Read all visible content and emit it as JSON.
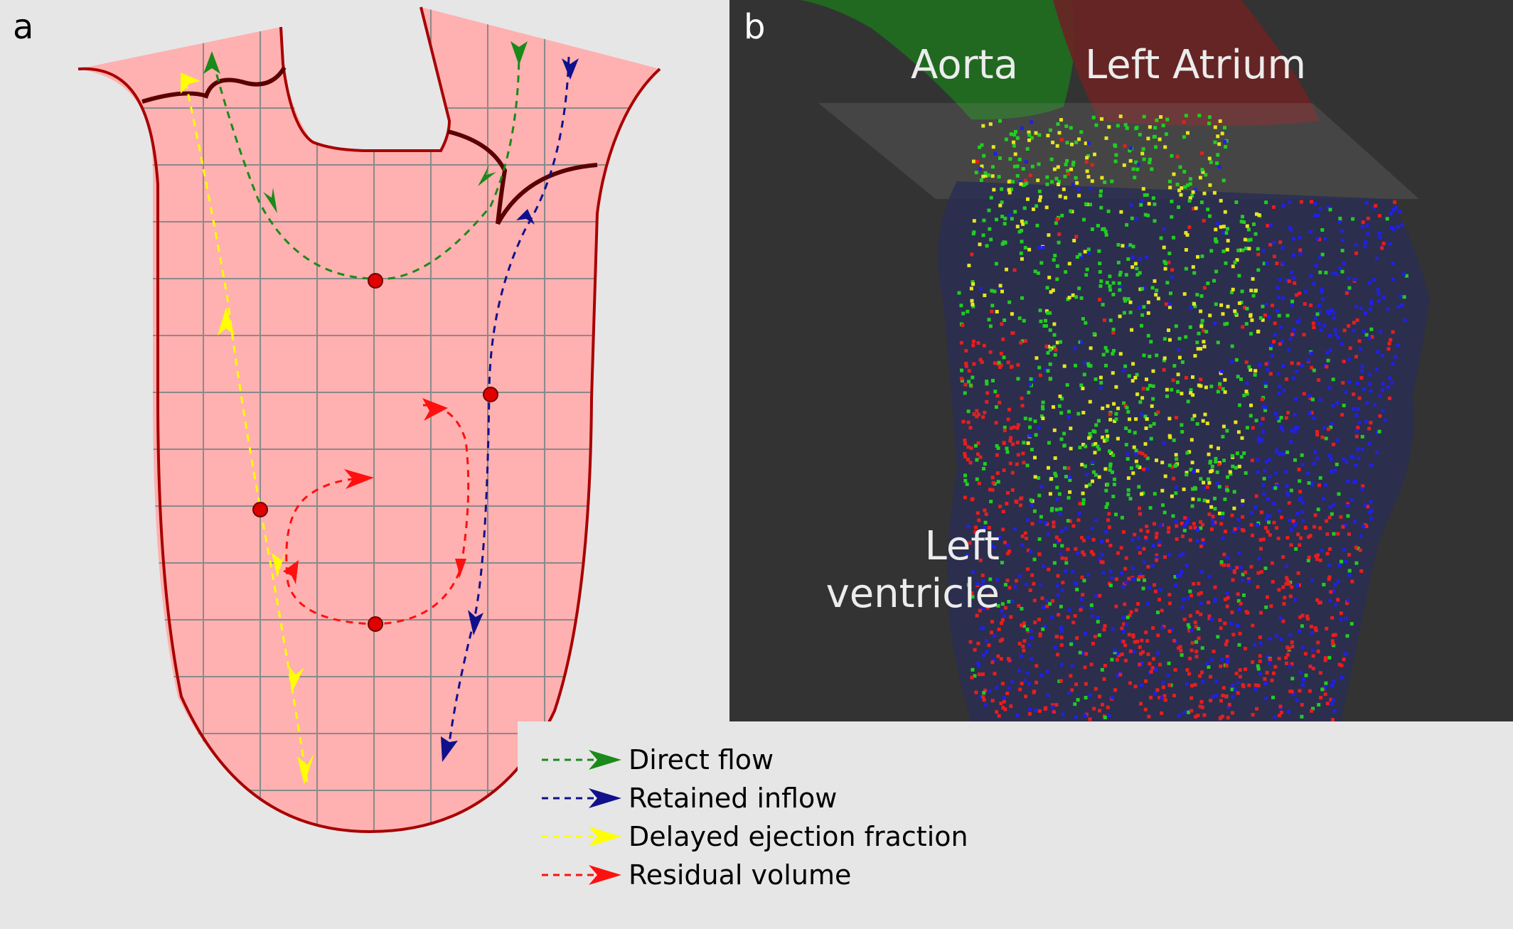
{
  "panel_a": {
    "letter": "a",
    "legend": [
      {
        "label": "Direct flow",
        "color": "#1a8a1a"
      },
      {
        "label": "Retained inflow",
        "color": "#10108c"
      },
      {
        "label": "Delayed ejection fraction",
        "color": "#ffff00"
      },
      {
        "label": "Residual volume",
        "color": "#ff1010"
      }
    ],
    "ventricle_fill": "#ffb0b0",
    "ventricle_outline": "#a80000"
  },
  "panel_b": {
    "letter": "b",
    "aorta_label": "Aorta",
    "atrium_label": "Left Atrium",
    "ventricle_label_line1": "Left",
    "ventricle_label_line2": "ventricle",
    "background": "#333333",
    "particle_colors": [
      "#22cc22",
      "#e6e61e",
      "#2020e6",
      "#e61e1e"
    ]
  }
}
